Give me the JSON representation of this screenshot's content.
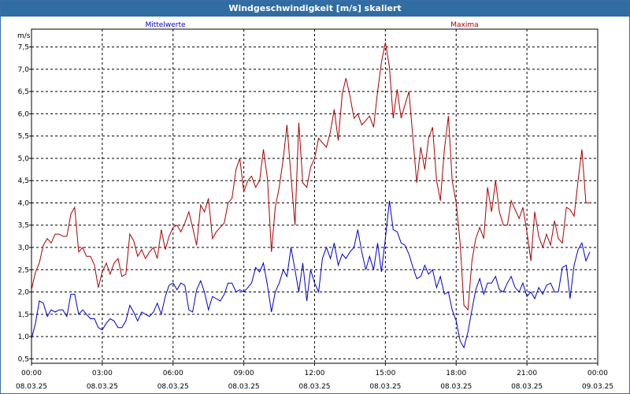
{
  "window": {
    "title": "Windgeschwindigkeit [m/s] skaliert"
  },
  "colors": {
    "mean": "#0000cc",
    "max": "#aa0000",
    "grid": "#000000",
    "frame": "#3a6ea5",
    "titlebar": "#2f6da3"
  },
  "chart_data": {
    "type": "line",
    "title": "Windgeschwindigkeit [m/s] skaliert",
    "ylabel": "m/s",
    "xlabel": "",
    "xlim": [
      0,
      24
    ],
    "ylim": [
      0.4,
      7.9
    ],
    "grid": true,
    "yticks": [
      0.5,
      1.0,
      1.5,
      2.0,
      2.5,
      3.0,
      3.5,
      4.0,
      4.5,
      5.0,
      5.5,
      6.0,
      6.5,
      7.0,
      7.5
    ],
    "ytick_labels": [
      "0,5",
      "1,0",
      "1,5",
      "2,0",
      "2,5",
      "3,0",
      "3,5",
      "4,0",
      "4,5",
      "5,0",
      "5,5",
      "6,0",
      "6,5",
      "7,0",
      "7,5"
    ],
    "xticks": [
      {
        "h": 0,
        "time": "00:00",
        "date": "08.03.25"
      },
      {
        "h": 3,
        "time": "03:00",
        "date": "08.03.25"
      },
      {
        "h": 6,
        "time": "06:00",
        "date": "08.03.25"
      },
      {
        "h": 9,
        "time": "09:00",
        "date": "08.03.25"
      },
      {
        "h": 12,
        "time": "12:00",
        "date": "08.03.25"
      },
      {
        "h": 15,
        "time": "15:00",
        "date": "08.03.25"
      },
      {
        "h": 18,
        "time": "18:00",
        "date": "08.03.25"
      },
      {
        "h": 21,
        "time": "21:00",
        "date": "08.03.25"
      },
      {
        "h": 24,
        "time": "00:00",
        "date": "09.03.25"
      }
    ],
    "series": [
      {
        "name": "Mittelwerte",
        "points": [
          [
            0.0,
            0.95
          ],
          [
            0.17,
            1.3
          ],
          [
            0.33,
            1.8
          ],
          [
            0.5,
            1.75
          ],
          [
            0.67,
            1.45
          ],
          [
            0.83,
            1.6
          ],
          [
            1.0,
            1.55
          ],
          [
            1.17,
            1.6
          ],
          [
            1.33,
            1.6
          ],
          [
            1.5,
            1.45
          ],
          [
            1.67,
            1.95
          ],
          [
            1.83,
            1.95
          ],
          [
            2.0,
            1.5
          ],
          [
            2.17,
            1.6
          ],
          [
            2.33,
            1.5
          ],
          [
            2.5,
            1.4
          ],
          [
            2.67,
            1.4
          ],
          [
            2.83,
            1.2
          ],
          [
            3.0,
            1.15
          ],
          [
            3.17,
            1.3
          ],
          [
            3.33,
            1.4
          ],
          [
            3.5,
            1.35
          ],
          [
            3.67,
            1.2
          ],
          [
            3.83,
            1.2
          ],
          [
            4.0,
            1.35
          ],
          [
            4.17,
            1.7
          ],
          [
            4.33,
            1.55
          ],
          [
            4.5,
            1.35
          ],
          [
            4.67,
            1.55
          ],
          [
            4.83,
            1.5
          ],
          [
            5.0,
            1.45
          ],
          [
            5.17,
            1.55
          ],
          [
            5.33,
            1.75
          ],
          [
            5.5,
            1.5
          ],
          [
            5.67,
            1.9
          ],
          [
            5.83,
            2.15
          ],
          [
            6.0,
            2.2
          ],
          [
            6.17,
            2.05
          ],
          [
            6.33,
            2.2
          ],
          [
            6.5,
            2.15
          ],
          [
            6.67,
            1.6
          ],
          [
            6.83,
            1.55
          ],
          [
            7.0,
            2.05
          ],
          [
            7.17,
            2.25
          ],
          [
            7.33,
            2.0
          ],
          [
            7.5,
            1.6
          ],
          [
            7.67,
            1.9
          ],
          [
            7.83,
            1.85
          ],
          [
            8.0,
            1.8
          ],
          [
            8.17,
            1.95
          ],
          [
            8.33,
            2.2
          ],
          [
            8.5,
            2.2
          ],
          [
            8.67,
            2.0
          ],
          [
            8.83,
            2.05
          ],
          [
            9.0,
            2.0
          ],
          [
            9.17,
            2.1
          ],
          [
            9.33,
            2.2
          ],
          [
            9.5,
            2.55
          ],
          [
            9.67,
            2.45
          ],
          [
            9.83,
            2.65
          ],
          [
            10.0,
            2.15
          ],
          [
            10.17,
            1.55
          ],
          [
            10.33,
            2.0
          ],
          [
            10.5,
            2.2
          ],
          [
            10.67,
            2.5
          ],
          [
            10.83,
            2.35
          ],
          [
            11.0,
            3.0
          ],
          [
            11.17,
            2.5
          ],
          [
            11.33,
            2.0
          ],
          [
            11.5,
            2.65
          ],
          [
            11.67,
            1.8
          ],
          [
            11.83,
            2.5
          ],
          [
            12.0,
            2.2
          ],
          [
            12.17,
            2.0
          ],
          [
            12.33,
            2.75
          ],
          [
            12.5,
            3.0
          ],
          [
            12.67,
            2.75
          ],
          [
            12.83,
            3.1
          ],
          [
            13.0,
            2.6
          ],
          [
            13.17,
            2.85
          ],
          [
            13.33,
            2.75
          ],
          [
            13.5,
            2.9
          ],
          [
            13.67,
            3.0
          ],
          [
            13.83,
            3.4
          ],
          [
            14.0,
            2.9
          ],
          [
            14.17,
            2.5
          ],
          [
            14.33,
            2.8
          ],
          [
            14.5,
            2.5
          ],
          [
            14.67,
            3.1
          ],
          [
            14.83,
            2.45
          ],
          [
            15.0,
            3.2
          ],
          [
            15.17,
            4.05
          ],
          [
            15.33,
            3.4
          ],
          [
            15.5,
            3.35
          ],
          [
            15.67,
            3.1
          ],
          [
            15.83,
            3.05
          ],
          [
            16.0,
            2.85
          ],
          [
            16.17,
            2.55
          ],
          [
            16.33,
            2.3
          ],
          [
            16.5,
            2.35
          ],
          [
            16.67,
            2.6
          ],
          [
            16.83,
            2.4
          ],
          [
            17.0,
            2.5
          ],
          [
            17.17,
            2.1
          ],
          [
            17.33,
            2.35
          ],
          [
            17.5,
            1.95
          ],
          [
            17.67,
            2.0
          ],
          [
            17.83,
            1.6
          ],
          [
            18.0,
            1.35
          ],
          [
            18.17,
            0.9
          ],
          [
            18.33,
            0.75
          ],
          [
            18.5,
            1.1
          ],
          [
            18.67,
            1.6
          ],
          [
            18.83,
            2.05
          ],
          [
            19.0,
            2.3
          ],
          [
            19.17,
            1.95
          ],
          [
            19.33,
            2.2
          ],
          [
            19.5,
            2.2
          ],
          [
            19.67,
            2.35
          ],
          [
            19.83,
            2.05
          ],
          [
            20.0,
            2.0
          ],
          [
            20.17,
            2.2
          ],
          [
            20.33,
            2.35
          ],
          [
            20.5,
            2.1
          ],
          [
            20.67,
            2.0
          ],
          [
            20.83,
            2.2
          ],
          [
            21.0,
            1.9
          ],
          [
            21.17,
            2.0
          ],
          [
            21.33,
            1.85
          ],
          [
            21.5,
            2.1
          ],
          [
            21.67,
            1.95
          ],
          [
            21.83,
            2.15
          ],
          [
            22.0,
            2.2
          ],
          [
            22.17,
            2.0
          ],
          [
            22.33,
            2.0
          ],
          [
            22.5,
            2.55
          ],
          [
            22.67,
            2.6
          ],
          [
            22.83,
            1.85
          ],
          [
            23.0,
            2.6
          ],
          [
            23.17,
            2.95
          ],
          [
            23.33,
            3.1
          ],
          [
            23.5,
            2.7
          ],
          [
            23.67,
            2.9
          ]
        ]
      },
      {
        "name": "Maxima",
        "points": [
          [
            0.0,
            2.05
          ],
          [
            0.17,
            2.45
          ],
          [
            0.33,
            2.65
          ],
          [
            0.5,
            3.05
          ],
          [
            0.67,
            3.2
          ],
          [
            0.83,
            3.1
          ],
          [
            1.0,
            3.3
          ],
          [
            1.17,
            3.3
          ],
          [
            1.33,
            3.25
          ],
          [
            1.5,
            3.25
          ],
          [
            1.67,
            3.75
          ],
          [
            1.83,
            3.9
          ],
          [
            2.0,
            2.9
          ],
          [
            2.17,
            3.0
          ],
          [
            2.33,
            2.8
          ],
          [
            2.5,
            2.8
          ],
          [
            2.67,
            2.6
          ],
          [
            2.83,
            2.1
          ],
          [
            3.0,
            2.45
          ],
          [
            3.17,
            2.65
          ],
          [
            3.33,
            2.4
          ],
          [
            3.5,
            2.65
          ],
          [
            3.67,
            2.75
          ],
          [
            3.83,
            2.35
          ],
          [
            4.0,
            2.4
          ],
          [
            4.17,
            3.3
          ],
          [
            4.33,
            3.15
          ],
          [
            4.5,
            2.8
          ],
          [
            4.67,
            2.95
          ],
          [
            4.83,
            2.75
          ],
          [
            5.0,
            2.9
          ],
          [
            5.17,
            3.0
          ],
          [
            5.33,
            2.75
          ],
          [
            5.5,
            3.4
          ],
          [
            5.67,
            2.95
          ],
          [
            5.83,
            3.25
          ],
          [
            6.0,
            3.45
          ],
          [
            6.17,
            3.5
          ],
          [
            6.33,
            3.35
          ],
          [
            6.5,
            3.55
          ],
          [
            6.67,
            3.8
          ],
          [
            6.83,
            3.45
          ],
          [
            7.0,
            3.05
          ],
          [
            7.17,
            3.95
          ],
          [
            7.33,
            3.8
          ],
          [
            7.5,
            4.1
          ],
          [
            7.67,
            3.2
          ],
          [
            7.83,
            3.35
          ],
          [
            8.0,
            3.45
          ],
          [
            8.17,
            3.55
          ],
          [
            8.33,
            4.0
          ],
          [
            8.5,
            4.1
          ],
          [
            8.67,
            4.75
          ],
          [
            8.83,
            5.0
          ],
          [
            9.0,
            4.25
          ],
          [
            9.17,
            4.5
          ],
          [
            9.33,
            4.6
          ],
          [
            9.5,
            4.35
          ],
          [
            9.67,
            4.5
          ],
          [
            9.83,
            5.2
          ],
          [
            10.0,
            4.55
          ],
          [
            10.17,
            2.9
          ],
          [
            10.33,
            3.9
          ],
          [
            10.5,
            4.35
          ],
          [
            10.67,
            5.0
          ],
          [
            10.83,
            5.75
          ],
          [
            11.0,
            4.6
          ],
          [
            11.17,
            3.5
          ],
          [
            11.33,
            5.8
          ],
          [
            11.5,
            4.45
          ],
          [
            11.67,
            4.35
          ],
          [
            11.83,
            4.8
          ],
          [
            12.0,
            5.0
          ],
          [
            12.17,
            5.45
          ],
          [
            12.33,
            5.35
          ],
          [
            12.5,
            5.25
          ],
          [
            12.67,
            5.6
          ],
          [
            12.83,
            6.1
          ],
          [
            13.0,
            5.4
          ],
          [
            13.17,
            6.45
          ],
          [
            13.33,
            6.8
          ],
          [
            13.5,
            6.4
          ],
          [
            13.67,
            5.9
          ],
          [
            13.83,
            6.0
          ],
          [
            14.0,
            5.75
          ],
          [
            14.17,
            5.85
          ],
          [
            14.33,
            5.95
          ],
          [
            14.5,
            5.7
          ],
          [
            14.67,
            6.5
          ],
          [
            14.83,
            7.15
          ],
          [
            15.0,
            7.6
          ],
          [
            15.17,
            7.05
          ],
          [
            15.33,
            5.9
          ],
          [
            15.5,
            6.55
          ],
          [
            15.67,
            5.9
          ],
          [
            15.83,
            6.2
          ],
          [
            16.0,
            6.5
          ],
          [
            16.17,
            5.45
          ],
          [
            16.33,
            4.45
          ],
          [
            16.5,
            5.25
          ],
          [
            16.67,
            4.75
          ],
          [
            16.83,
            5.45
          ],
          [
            17.0,
            5.7
          ],
          [
            17.17,
            4.5
          ],
          [
            17.33,
            4.05
          ],
          [
            17.5,
            5.2
          ],
          [
            17.67,
            5.95
          ],
          [
            17.83,
            4.5
          ],
          [
            18.0,
            4.0
          ],
          [
            18.17,
            3.1
          ],
          [
            18.33,
            1.7
          ],
          [
            18.5,
            1.6
          ],
          [
            18.67,
            2.7
          ],
          [
            18.83,
            3.2
          ],
          [
            19.0,
            3.45
          ],
          [
            19.17,
            3.2
          ],
          [
            19.33,
            4.35
          ],
          [
            19.5,
            3.8
          ],
          [
            19.67,
            4.5
          ],
          [
            19.83,
            3.8
          ],
          [
            20.0,
            3.5
          ],
          [
            20.17,
            3.5
          ],
          [
            20.33,
            4.05
          ],
          [
            20.5,
            3.85
          ],
          [
            20.67,
            3.65
          ],
          [
            20.83,
            3.9
          ],
          [
            21.0,
            3.35
          ],
          [
            21.17,
            2.7
          ],
          [
            21.33,
            3.8
          ],
          [
            21.5,
            3.25
          ],
          [
            21.67,
            3.0
          ],
          [
            21.83,
            3.3
          ],
          [
            22.0,
            3.05
          ],
          [
            22.17,
            3.6
          ],
          [
            22.33,
            3.2
          ],
          [
            22.5,
            3.1
          ],
          [
            22.67,
            3.9
          ],
          [
            22.83,
            3.85
          ],
          [
            23.0,
            3.7
          ],
          [
            23.17,
            4.5
          ],
          [
            23.33,
            5.2
          ],
          [
            23.5,
            4.0
          ],
          [
            23.67,
            4.0
          ]
        ]
      }
    ]
  }
}
